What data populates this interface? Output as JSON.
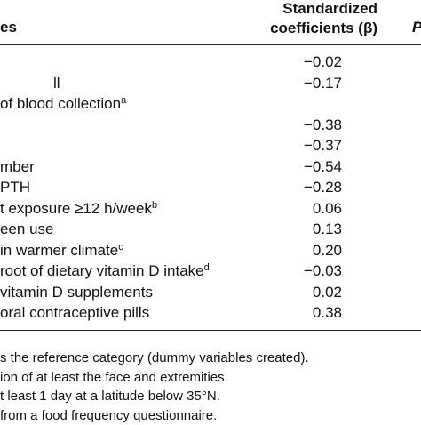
{
  "table": {
    "header": {
      "variables": "es",
      "coefficients_line1": "Standardized",
      "coefficients_line2": "coefficients (β)",
      "p": "P"
    },
    "rows": [
      {
        "label": "",
        "value": "−0.02"
      },
      {
        "label": "ll",
        "value": "−0.17"
      },
      {
        "label": "of blood collection",
        "sup": "a",
        "value": ""
      },
      {
        "label": "",
        "value": "−0.38"
      },
      {
        "label": "",
        "value": "−0.37"
      },
      {
        "label": "mber",
        "value": "−0.54"
      },
      {
        "label": "PTH",
        "value": "−0.28"
      },
      {
        "label": "t exposure ≥12 h/week",
        "sup": "b",
        "value": "0.06"
      },
      {
        "label": "een use",
        "value": "0.13"
      },
      {
        "label": "in warmer climate",
        "sup": "c",
        "value": "0.20"
      },
      {
        "label": "root of dietary vitamin D intake",
        "sup": "d",
        "value": "−0.03"
      },
      {
        "label": "vitamin D supplements",
        "value": "0.02"
      },
      {
        "label": "oral contraceptive pills",
        "value": "0.38"
      }
    ],
    "footnotes": [
      "s the reference category (dummy variables created).",
      "ion of at least the face and extremities.",
      "t least 1 day at a latitude below 35°N.",
      " from a food frequency questionnaire."
    ]
  }
}
